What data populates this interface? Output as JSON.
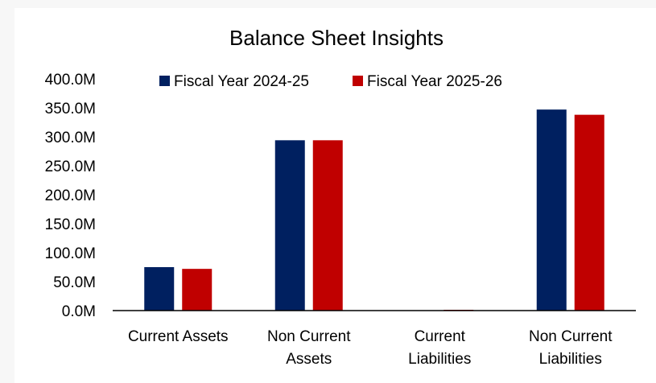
{
  "chart_data": {
    "type": "bar",
    "title": "Balance Sheet Insights",
    "categories": [
      [
        "Current Assets"
      ],
      [
        "Non Current",
        "Assets"
      ],
      [
        "Current",
        "Liabilities"
      ],
      [
        "Non Current",
        "Liabilities"
      ]
    ],
    "series": [
      {
        "name": "Fiscal Year 2024-25",
        "color": "#002060",
        "values": [
          75,
          294,
          0,
          347
        ]
      },
      {
        "name": "Fiscal Year 2025-26",
        "color": "#C00000",
        "values": [
          72,
          294,
          1,
          338
        ]
      }
    ],
    "unit_suffix": "M",
    "ylim": [
      0,
      400
    ],
    "ytick_step": 50,
    "yticks": [
      "0.0M",
      "50.0M",
      "100.0M",
      "150.0M",
      "200.0M",
      "250.0M",
      "300.0M",
      "350.0M",
      "400.0M"
    ],
    "grid": false,
    "legend_position": "top-center"
  }
}
